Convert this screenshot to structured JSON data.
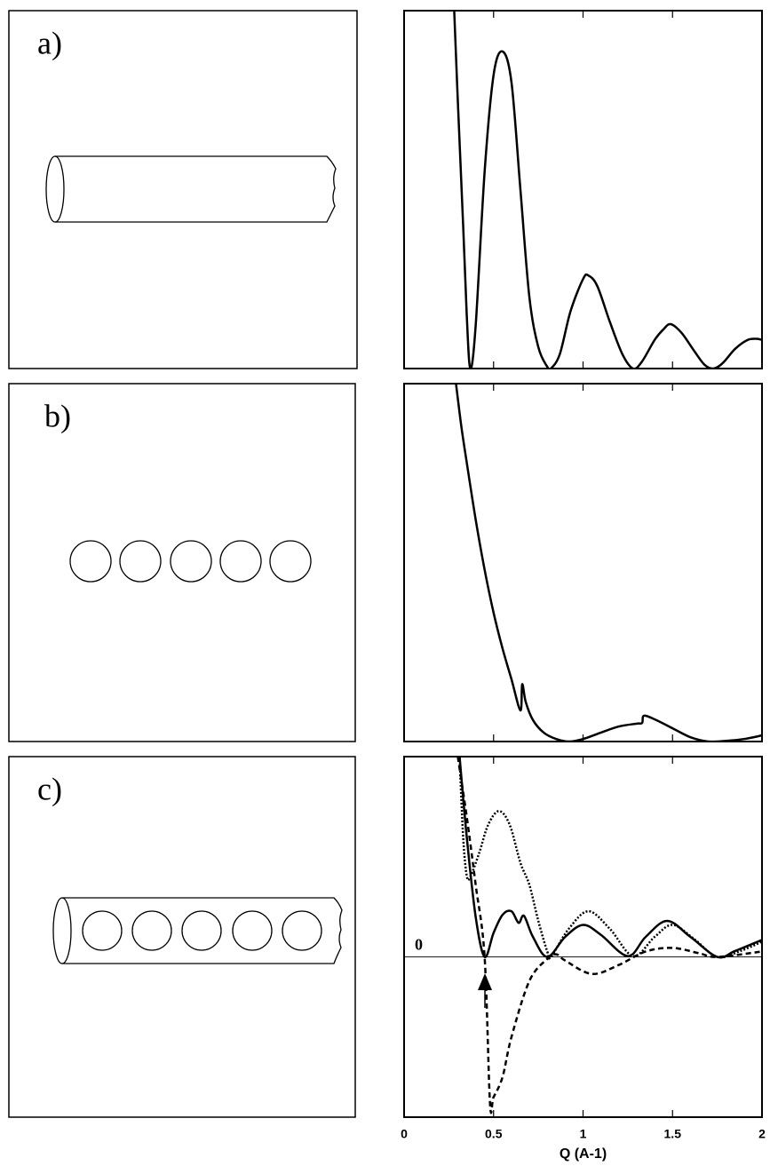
{
  "panel_labels": [
    "a)",
    "b)",
    "c)"
  ],
  "chart_data": [
    {
      "type": "line",
      "xlim": [
        0,
        2
      ],
      "ylim": [
        0,
        100
      ],
      "series": [
        {
          "color": "#000000",
          "style": "solid",
          "x": [
            0.28,
            0.3,
            0.33,
            0.35,
            0.37,
            0.4,
            0.45,
            0.5,
            0.55,
            0.6,
            0.65,
            0.7,
            0.75,
            0.8,
            0.82,
            0.87,
            0.93,
            1.0,
            1.03,
            1.08,
            1.15,
            1.22,
            1.28,
            1.33,
            1.4,
            1.45,
            1.49,
            1.55,
            1.62,
            1.68,
            1.73,
            1.78,
            1.85,
            1.92,
            1.97,
            2.0
          ],
          "values": [
            100,
            75,
            40,
            15,
            0,
            12,
            55,
            82,
            88.6,
            80,
            50,
            20,
            6,
            0.5,
            0,
            4,
            16,
            25,
            26,
            23,
            13,
            4,
            0,
            2,
            8,
            11,
            12.4,
            10,
            5,
            1,
            0,
            1.5,
            5.5,
            8,
            8.3,
            8
          ]
        }
      ]
    },
    {
      "type": "line",
      "xlim": [
        0,
        2
      ],
      "ylim": [
        0,
        100
      ],
      "series": [
        {
          "color": "#000000",
          "style": "solid",
          "x": [
            0.29,
            0.32,
            0.35,
            0.4,
            0.45,
            0.5,
            0.55,
            0.6,
            0.65,
            0.66,
            0.68,
            0.72,
            0.78,
            0.85,
            0.92,
            1.0,
            1.1,
            1.2,
            1.3,
            1.33,
            1.34,
            1.4,
            1.5,
            1.6,
            1.7,
            1.8,
            1.9,
            2.0
          ],
          "values": [
            100,
            88,
            78,
            62,
            48,
            36,
            26,
            17.4,
            8.7,
            16,
            11,
            6,
            2.5,
            0.7,
            0,
            0.7,
            2.5,
            4.2,
            5,
            5.2,
            7.2,
            6.2,
            3.7,
            1.2,
            0,
            0.2,
            0.7,
            1.7
          ]
        }
      ]
    },
    {
      "type": "line",
      "xlim": [
        0,
        2
      ],
      "ylim": [
        -80,
        100
      ],
      "xticks": [
        0,
        0.5,
        1,
        1.5,
        2
      ],
      "yticks": [
        0
      ],
      "xlabel": "Q (A-1)",
      "series": [
        {
          "color": "#000000",
          "style": "solid",
          "x": [
            0.31,
            0.35,
            0.4,
            0.45,
            0.5,
            0.55,
            0.6,
            0.64,
            0.67,
            0.72,
            0.8,
            0.9,
            1.0,
            1.1,
            1.25,
            1.35,
            1.47,
            1.6,
            1.75,
            1.85,
            2.0
          ],
          "values": [
            100,
            60,
            20,
            0,
            12,
            21,
            22.8,
            17,
            20.5,
            10,
            0,
            10,
            16,
            11,
            0.4,
            10,
            18,
            10,
            0,
            3,
            8.5
          ]
        },
        {
          "color": "#000000",
          "style": "dotted",
          "x": [
            0.31,
            0.33,
            0.35,
            0.37,
            0.42,
            0.47,
            0.53,
            0.59,
            0.65,
            0.7,
            0.75,
            0.8,
            0.82,
            0.92,
            1.03,
            1.15,
            1.28,
            1.4,
            1.5,
            1.62,
            1.75,
            1.88,
            2.0
          ],
          "values": [
            100,
            60,
            40.6,
            40,
            52,
            66,
            72.8,
            66,
            47,
            36,
            18,
            2.7,
            0,
            14,
            22.8,
            14,
            0.4,
            10,
            16,
            9,
            0,
            3,
            7.6
          ]
        },
        {
          "color": "#000000",
          "style": "dashed",
          "x": [
            0.3,
            0.35,
            0.4,
            0.45,
            0.48,
            0.5,
            0.55,
            0.6,
            0.7,
            0.8,
            0.85,
            0.9,
            1.05,
            1.2,
            1.35,
            1.5,
            1.65,
            1.75,
            2.0
          ],
          "values": [
            100,
            70,
            36,
            0,
            -73,
            -70,
            -60,
            -40,
            -12,
            -1,
            1.3,
            -1.8,
            -8.5,
            -4,
            2.7,
            4.5,
            1.8,
            0,
            2.7
          ]
        }
      ]
    }
  ]
}
